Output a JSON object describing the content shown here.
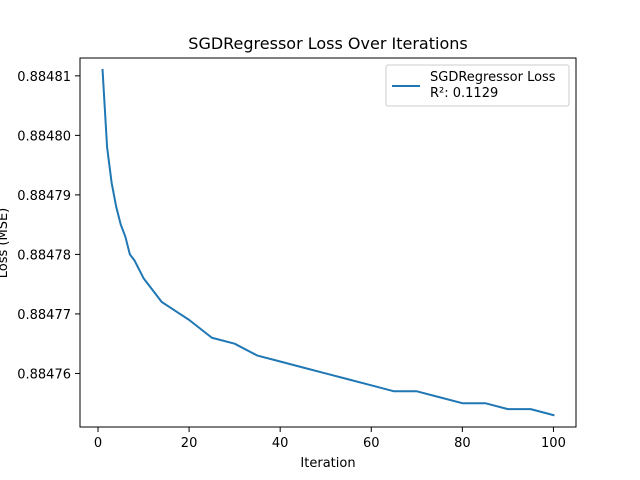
{
  "chart_data": {
    "type": "line",
    "title": "SGDRegressor Loss Over Iterations",
    "xlabel": "Iteration",
    "ylabel": "Loss (MSE)",
    "xlim": [
      -3.95,
      104.95
    ],
    "ylim": [
      0.884751,
      0.884813
    ],
    "xticks": [
      0,
      20,
      40,
      60,
      80,
      100
    ],
    "yticks": [
      0.88476,
      0.88477,
      0.88478,
      0.88479,
      0.8848,
      0.88481
    ],
    "ytick_labels": [
      "0.88476",
      "0.88477",
      "0.88478",
      "0.88479",
      "0.88480",
      "0.88481"
    ],
    "grid": false,
    "legend_position": "upper right",
    "series": [
      {
        "name": "SGDRegressor Loss",
        "legend_label_line2": "R²: 0.1129",
        "color": "#1f77b4",
        "x": [
          1,
          2,
          3,
          4,
          5,
          6,
          7,
          8,
          10,
          12,
          14,
          16,
          18,
          20,
          25,
          30,
          35,
          40,
          45,
          50,
          55,
          60,
          65,
          70,
          75,
          80,
          85,
          90,
          95,
          100
        ],
        "y": [
          0.884811,
          0.884798,
          0.884792,
          0.884788,
          0.884785,
          0.884783,
          0.88478,
          0.884779,
          0.884776,
          0.884774,
          0.884772,
          0.884771,
          0.88477,
          0.884769,
          0.884766,
          0.884765,
          0.884763,
          0.884762,
          0.884761,
          0.88476,
          0.884759,
          0.884758,
          0.884757,
          0.884757,
          0.884756,
          0.884755,
          0.884755,
          0.884754,
          0.884754,
          0.884753
        ]
      }
    ]
  }
}
